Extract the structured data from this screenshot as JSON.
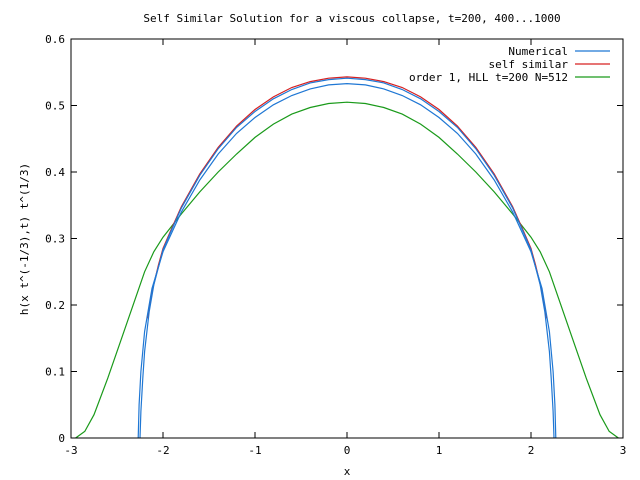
{
  "chart_data": {
    "type": "line",
    "title": "Self Similar Solution for a viscous collapse, t=200, 400...1000",
    "xlabel": "x",
    "ylabel": "h(x t^(-1/3),t) t^(1/3)",
    "xlim": [
      -3,
      3
    ],
    "ylim": [
      0,
      0.6
    ],
    "x_ticks": [
      -3,
      -2,
      -1,
      0,
      1,
      2,
      3
    ],
    "x_tick_labels": [
      "-3",
      "-2",
      "-1",
      "0",
      "1",
      "2",
      "3"
    ],
    "y_ticks": [
      0,
      0.1,
      0.2,
      0.3,
      0.4,
      0.5,
      0.6
    ],
    "y_tick_labels": [
      "0",
      "0.1",
      "0.2",
      "0.3",
      "0.4",
      "0.5",
      "0.6"
    ],
    "grid": false,
    "legend_position": "top-right",
    "series": [
      {
        "name": "Numerical",
        "color": "#1f77d4",
        "curves": [
          [
            [
              -2.25,
              0.0
            ],
            [
              -2.24,
              0.04
            ],
            [
              -2.22,
              0.09
            ],
            [
              -2.2,
              0.13
            ],
            [
              -2.15,
              0.19
            ],
            [
              -2.1,
              0.23
            ],
            [
              -2.0,
              0.283
            ],
            [
              -1.9,
              0.315
            ],
            [
              -1.8,
              0.346
            ],
            [
              -1.6,
              0.395
            ],
            [
              -1.4,
              0.435
            ],
            [
              -1.2,
              0.467
            ],
            [
              -1.0,
              0.491
            ],
            [
              -0.8,
              0.51
            ],
            [
              -0.6,
              0.524
            ],
            [
              -0.4,
              0.534
            ],
            [
              -0.2,
              0.539
            ],
            [
              0.0,
              0.541
            ],
            [
              0.2,
              0.539
            ],
            [
              0.4,
              0.534
            ],
            [
              0.6,
              0.524
            ],
            [
              0.8,
              0.51
            ],
            [
              1.0,
              0.491
            ],
            [
              1.2,
              0.467
            ],
            [
              1.4,
              0.435
            ],
            [
              1.6,
              0.395
            ],
            [
              1.8,
              0.346
            ],
            [
              1.9,
              0.315
            ],
            [
              2.0,
              0.283
            ],
            [
              2.1,
              0.23
            ],
            [
              2.15,
              0.19
            ],
            [
              2.2,
              0.13
            ],
            [
              2.22,
              0.09
            ],
            [
              2.24,
              0.04
            ],
            [
              2.25,
              0.0
            ]
          ],
          [
            [
              -2.27,
              0.0
            ],
            [
              -2.26,
              0.05
            ],
            [
              -2.24,
              0.1
            ],
            [
              -2.2,
              0.16
            ],
            [
              -2.12,
              0.225
            ],
            [
              -2.0,
              0.28
            ],
            [
              -1.9,
              0.31
            ],
            [
              -1.8,
              0.34
            ],
            [
              -1.6,
              0.388
            ],
            [
              -1.4,
              0.427
            ],
            [
              -1.2,
              0.458
            ],
            [
              -1.0,
              0.482
            ],
            [
              -0.8,
              0.501
            ],
            [
              -0.6,
              0.515
            ],
            [
              -0.4,
              0.525
            ],
            [
              -0.2,
              0.531
            ],
            [
              0.0,
              0.533
            ],
            [
              0.2,
              0.531
            ],
            [
              0.4,
              0.525
            ],
            [
              0.6,
              0.515
            ],
            [
              0.8,
              0.501
            ],
            [
              1.0,
              0.482
            ],
            [
              1.2,
              0.458
            ],
            [
              1.4,
              0.427
            ],
            [
              1.6,
              0.388
            ],
            [
              1.8,
              0.34
            ],
            [
              1.9,
              0.31
            ],
            [
              2.0,
              0.28
            ],
            [
              2.12,
              0.225
            ],
            [
              2.2,
              0.16
            ],
            [
              2.24,
              0.1
            ],
            [
              2.26,
              0.05
            ],
            [
              2.27,
              0.0
            ]
          ]
        ]
      },
      {
        "name": "self similar",
        "color": "#d62020",
        "curves": [
          [
            [
              -2.17,
              0.18
            ],
            [
              -2.12,
              0.22
            ],
            [
              -2.05,
              0.26
            ],
            [
              -2.0,
              0.285
            ],
            [
              -1.9,
              0.317
            ],
            [
              -1.8,
              0.348
            ],
            [
              -1.6,
              0.397
            ],
            [
              -1.4,
              0.437
            ],
            [
              -1.2,
              0.469
            ],
            [
              -1.0,
              0.494
            ],
            [
              -0.8,
              0.513
            ],
            [
              -0.6,
              0.527
            ],
            [
              -0.4,
              0.536
            ],
            [
              -0.2,
              0.541
            ],
            [
              0.0,
              0.543
            ],
            [
              0.2,
              0.541
            ],
            [
              0.4,
              0.536
            ],
            [
              0.6,
              0.527
            ],
            [
              0.8,
              0.513
            ],
            [
              1.0,
              0.494
            ],
            [
              1.2,
              0.469
            ],
            [
              1.4,
              0.437
            ],
            [
              1.6,
              0.397
            ],
            [
              1.8,
              0.348
            ],
            [
              1.9,
              0.317
            ],
            [
              2.0,
              0.285
            ],
            [
              2.05,
              0.26
            ],
            [
              2.12,
              0.22
            ],
            [
              2.17,
              0.18
            ]
          ]
        ]
      },
      {
        "name": "order 1, HLL t=200 N=512",
        "color": "#1a9a1a",
        "curves": [
          [
            [
              -2.95,
              0.0
            ],
            [
              -2.85,
              0.01
            ],
            [
              -2.75,
              0.035
            ],
            [
              -2.6,
              0.09
            ],
            [
              -2.45,
              0.15
            ],
            [
              -2.3,
              0.21
            ],
            [
              -2.2,
              0.25
            ],
            [
              -2.1,
              0.28
            ],
            [
              -2.0,
              0.302
            ],
            [
              -1.8,
              0.337
            ],
            [
              -1.6,
              0.37
            ],
            [
              -1.4,
              0.4
            ],
            [
              -1.2,
              0.427
            ],
            [
              -1.0,
              0.452
            ],
            [
              -0.8,
              0.472
            ],
            [
              -0.6,
              0.487
            ],
            [
              -0.4,
              0.497
            ],
            [
              -0.2,
              0.503
            ],
            [
              0.0,
              0.505
            ],
            [
              0.2,
              0.503
            ],
            [
              0.4,
              0.497
            ],
            [
              0.6,
              0.487
            ],
            [
              0.8,
              0.472
            ],
            [
              1.0,
              0.452
            ],
            [
              1.2,
              0.427
            ],
            [
              1.4,
              0.4
            ],
            [
              1.6,
              0.37
            ],
            [
              1.8,
              0.337
            ],
            [
              2.0,
              0.302
            ],
            [
              2.1,
              0.28
            ],
            [
              2.2,
              0.25
            ],
            [
              2.3,
              0.21
            ],
            [
              2.45,
              0.15
            ],
            [
              2.6,
              0.09
            ],
            [
              2.75,
              0.035
            ],
            [
              2.85,
              0.01
            ],
            [
              2.95,
              0.0
            ]
          ]
        ]
      }
    ]
  }
}
